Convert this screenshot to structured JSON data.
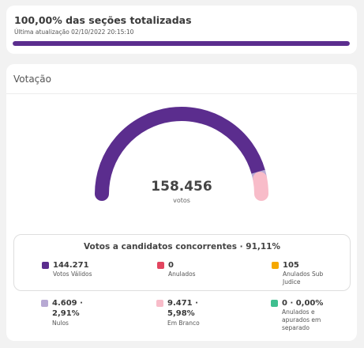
{
  "progress": {
    "title": "100,00% das seções totalizadas",
    "updated": "Última atualização 02/10/2022 20:15:10",
    "percent": 100
  },
  "votacao": {
    "title": "Votação",
    "total_votes": "158.456",
    "total_unit": "votos",
    "gauge_shares": {
      "validos": 91.11,
      "nulos": 2.91,
      "branco": 5.98
    },
    "colors": {
      "validos": "#5b2d8e",
      "nulos": "#b7a9d3",
      "branco": "#f8bcc9",
      "anulados": "#e2455f",
      "sub_judice": "#f5a800",
      "separado": "#3fbf8f"
    },
    "candidates_title": "Votos a candidatos concorrentes · 91,11%",
    "stats": {
      "validos": {
        "value": "144.271",
        "label": "Votos Válidos"
      },
      "anulados": {
        "value": "0",
        "label": "Anulados"
      },
      "sub_judice": {
        "value": "105",
        "label": "Anulados Sub Judice"
      },
      "nulos": {
        "value": "4.609 · 2,91%",
        "label": "Nulos"
      },
      "branco": {
        "value": "9.471 · 5,98%",
        "label": "Em Branco"
      },
      "separado": {
        "value": "0 · 0,00%",
        "label": "Anulados e apurados em separado"
      }
    }
  }
}
